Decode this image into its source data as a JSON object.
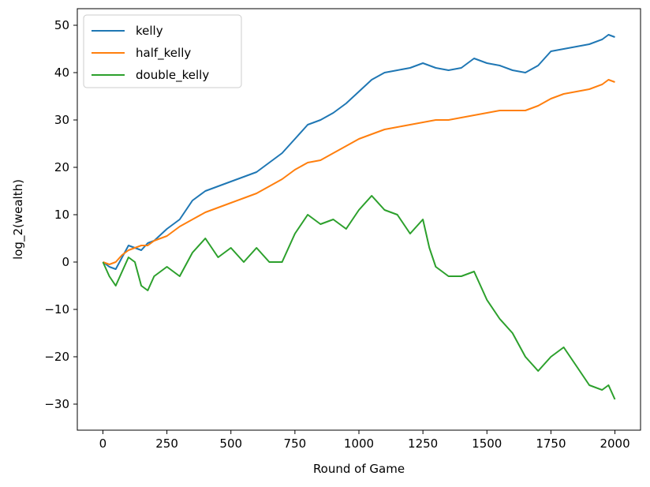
{
  "colors": {
    "kelly": "#1f77b4",
    "half_kelly": "#ff7f0e",
    "double_kelly": "#2ca02c",
    "axes": "#000000",
    "background": "#ffffff"
  },
  "chart_data": {
    "type": "line",
    "xlabel": "Round of Game",
    "ylabel": "log_2(wealth)",
    "xlim": [
      -100,
      2100
    ],
    "ylim": [
      -35.5,
      53.5
    ],
    "xticks": [
      0,
      250,
      500,
      750,
      1000,
      1250,
      1500,
      1750,
      2000
    ],
    "yticks": [
      -30,
      -20,
      -10,
      0,
      10,
      20,
      30,
      40,
      50
    ],
    "xtick_labels": [
      "0",
      "250",
      "500",
      "750",
      "1000",
      "1250",
      "1500",
      "1750",
      "2000"
    ],
    "ytick_labels": [
      "−30",
      "−20",
      "−10",
      "0",
      "10",
      "20",
      "30",
      "40",
      "50"
    ],
    "grid": false,
    "legend_position": "upper-left",
    "series": [
      {
        "name": "kelly",
        "x": [
          0,
          25,
          50,
          75,
          100,
          125,
          150,
          175,
          200,
          250,
          300,
          350,
          400,
          450,
          500,
          550,
          600,
          650,
          700,
          750,
          800,
          850,
          900,
          950,
          1000,
          1050,
          1100,
          1150,
          1200,
          1250,
          1300,
          1350,
          1400,
          1450,
          1500,
          1550,
          1600,
          1650,
          1700,
          1750,
          1800,
          1850,
          1900,
          1950,
          1975,
          2000
        ],
        "y": [
          0,
          -1,
          -1.5,
          1,
          3.5,
          3,
          2.5,
          4,
          4.5,
          7,
          9,
          13,
          15,
          16,
          17,
          18,
          19,
          21,
          23,
          26,
          29,
          30,
          31.5,
          33.5,
          36,
          38.5,
          40,
          40.5,
          41,
          42,
          41,
          40.5,
          41,
          43,
          42,
          41.5,
          40.5,
          40,
          41.5,
          44.5,
          45,
          45.5,
          46,
          47,
          48,
          47.5
        ]
      },
      {
        "name": "half_kelly",
        "x": [
          0,
          25,
          50,
          75,
          100,
          125,
          150,
          175,
          200,
          250,
          300,
          350,
          400,
          450,
          500,
          550,
          600,
          650,
          700,
          750,
          800,
          850,
          900,
          950,
          1000,
          1050,
          1100,
          1150,
          1200,
          1250,
          1300,
          1350,
          1400,
          1450,
          1500,
          1550,
          1600,
          1650,
          1700,
          1750,
          1800,
          1850,
          1900,
          1950,
          1975,
          2000
        ],
        "y": [
          0,
          -0.5,
          0,
          1.5,
          2.5,
          3,
          3.5,
          3.5,
          4.5,
          5.5,
          7.5,
          9,
          10.5,
          11.5,
          12.5,
          13.5,
          14.5,
          16,
          17.5,
          19.5,
          21,
          21.5,
          23,
          24.5,
          26,
          27,
          28,
          28.5,
          29,
          29.5,
          30,
          30,
          30.5,
          31,
          31.5,
          32,
          32,
          32,
          33,
          34.5,
          35.5,
          36,
          36.5,
          37.5,
          38.5,
          38
        ]
      },
      {
        "name": "double_kelly",
        "x": [
          0,
          25,
          50,
          75,
          100,
          125,
          150,
          175,
          200,
          250,
          300,
          350,
          400,
          450,
          500,
          550,
          600,
          650,
          700,
          750,
          800,
          850,
          900,
          950,
          1000,
          1050,
          1100,
          1150,
          1200,
          1250,
          1275,
          1300,
          1350,
          1400,
          1450,
          1500,
          1550,
          1600,
          1650,
          1700,
          1750,
          1800,
          1850,
          1900,
          1950,
          1975,
          2000
        ],
        "y": [
          0,
          -3,
          -5,
          -2,
          1,
          0,
          -5,
          -6,
          -3,
          -1,
          -3,
          2,
          5,
          1,
          3,
          0,
          3,
          0,
          0,
          6,
          10,
          8,
          9,
          7,
          11,
          14,
          11,
          10,
          6,
          9,
          3,
          -1,
          -3,
          -3,
          -2,
          -8,
          -12,
          -15,
          -20,
          -23,
          -20,
          -18,
          -22,
          -26,
          -27,
          -26,
          -29
        ]
      }
    ]
  }
}
